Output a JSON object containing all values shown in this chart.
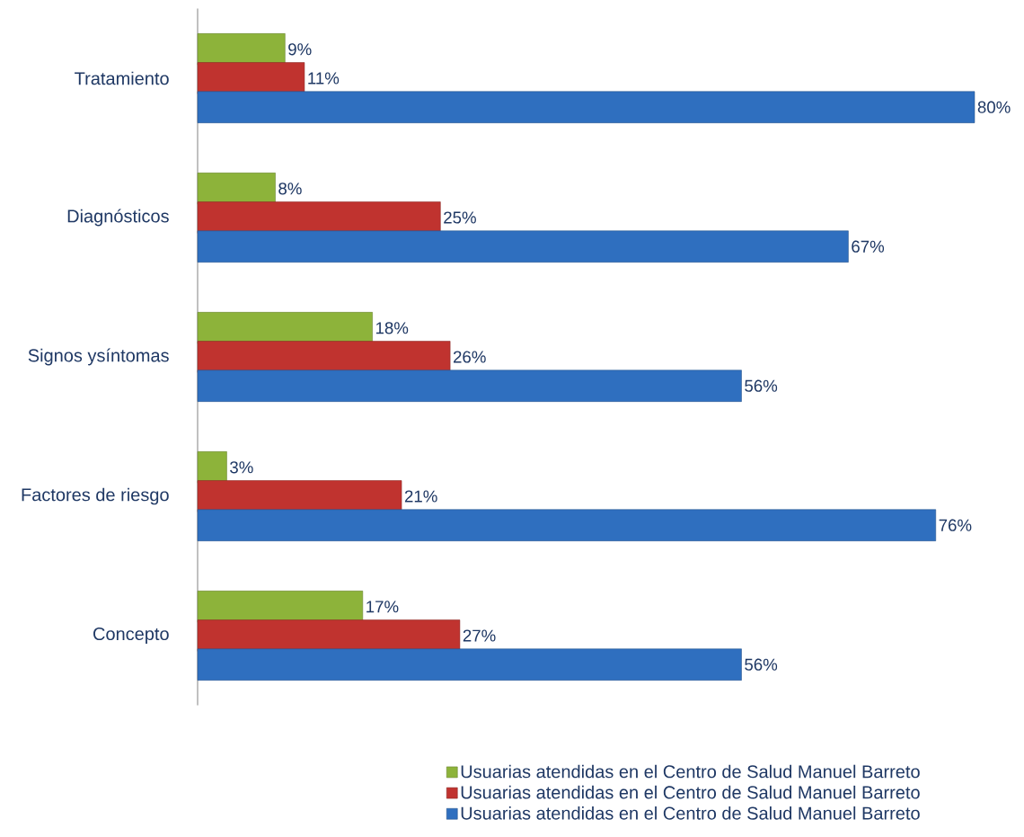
{
  "chart_data": {
    "type": "bar",
    "orientation": "horizontal",
    "categories": [
      "Tratamiento",
      "Diagnósticos",
      "Signos ysíntomas",
      "Factores de riesgo",
      "Concepto"
    ],
    "series": [
      {
        "name": "Usuarias atendidas en el Centro de Salud Manuel Barreto",
        "color": "#8db33a",
        "values": [
          9,
          8,
          18,
          3,
          17
        ],
        "value_labels": [
          "9%",
          "8%",
          "18%",
          "3%",
          "17%"
        ]
      },
      {
        "name": "Usuarias atendidas en el Centro de Salud Manuel Barreto",
        "color": "#c0332f",
        "values": [
          11,
          25,
          26,
          21,
          27
        ],
        "value_labels": [
          "11%",
          "25%",
          "26%",
          "21%",
          "27%"
        ]
      },
      {
        "name": "Usuarias atendidas en el Centro de Salud Manuel Barreto",
        "color": "#2f6fbf",
        "values": [
          80,
          67,
          56,
          76,
          56
        ],
        "value_labels": [
          "80%",
          "67%",
          "56%",
          "76%",
          "56%"
        ]
      }
    ],
    "xlim": [
      0,
      80
    ],
    "tick_labels": "y",
    "legend": "bottom right"
  }
}
